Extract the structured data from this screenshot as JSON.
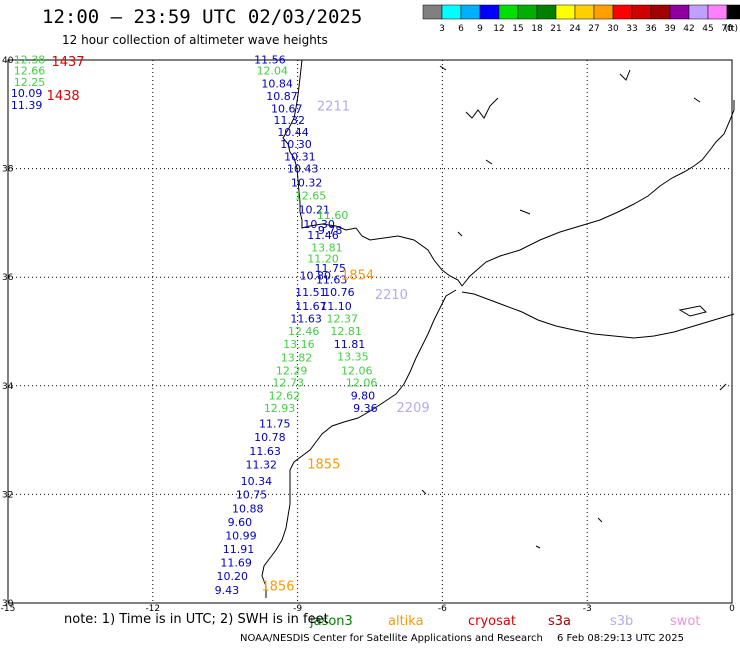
{
  "header": {
    "title": "12:00 – 23:59 UTC 02/03/2025",
    "subtitle": "12 hour collection of altimeter wave heights"
  },
  "scale": {
    "unit_label": "(ft)",
    "ticks": [
      "3",
      "6",
      "9",
      "12",
      "15",
      "18",
      "21",
      "24",
      "27",
      "30",
      "33",
      "36",
      "39",
      "42",
      "45",
      "70"
    ],
    "colors": [
      "#808080",
      "#00ffff",
      "#00b0ff",
      "#0000ff",
      "#00e000",
      "#00b000",
      "#008000",
      "#ffff00",
      "#ffd000",
      "#ffa000",
      "#ff0000",
      "#d00000",
      "#a00000",
      "#9000a0",
      "#c0a0ff",
      "#ff80ff",
      "#000000"
    ]
  },
  "axes": {
    "lon_labels": [
      "-15",
      "-12",
      "-9",
      "-6",
      "-3",
      "0"
    ],
    "lat_labels": [
      "40",
      "38",
      "36",
      "34",
      "32",
      "30"
    ],
    "lon_range": [
      -15,
      0
    ],
    "lat_range": [
      30,
      40
    ]
  },
  "satellites": [
    {
      "name": "jason3",
      "label": "jason3",
      "color": "#008000"
    },
    {
      "name": "altika",
      "label": "altika",
      "color": "#ff9900"
    },
    {
      "name": "cryosat",
      "label": "cryosat",
      "color": "#e00000"
    },
    {
      "name": "s3a",
      "label": "s3a",
      "color": "#a00000"
    },
    {
      "name": "s3b",
      "label": "s3b",
      "color": "#b8a8f0"
    },
    {
      "name": "swot",
      "label": "swot",
      "color": "#f090e0"
    }
  ],
  "footer": {
    "note": "note:  1) Time is in UTC;  2) SWH is in feet",
    "credit": "NOAA/NESDIS Center for Satellite Applications and Research",
    "stamp": "6 Feb 08:29:13 UTC 2025"
  },
  "pass_labels": [
    {
      "text": "1437",
      "color": "#e00000",
      "lon": -14.1,
      "lat": 39.89
    },
    {
      "text": "1438",
      "color": "#e00000",
      "lon": -14.2,
      "lat": 39.26
    },
    {
      "text": "2211",
      "color": "#b8a8f0",
      "lon": -8.6,
      "lat": 39.07
    },
    {
      "text": "1854",
      "color": "#ff9900",
      "lon": -8.1,
      "lat": 35.96
    },
    {
      "text": "2210",
      "color": "#b8a8f0",
      "lon": -7.4,
      "lat": 35.6
    },
    {
      "text": "2209",
      "color": "#b8a8f0",
      "lon": -6.95,
      "lat": 33.52
    },
    {
      "text": "1855",
      "color": "#ff9900",
      "lon": -8.8,
      "lat": 32.48
    },
    {
      "text": "1856",
      "color": "#ff9900",
      "lon": -9.75,
      "lat": 30.23
    }
  ],
  "observations": [
    {
      "v": "12.38",
      "c": "#40d040",
      "lon": -14.88,
      "lat": 39.94
    },
    {
      "v": "12.66",
      "c": "#40d040",
      "lon": -14.88,
      "lat": 39.73
    },
    {
      "v": "12.25",
      "c": "#40d040",
      "lon": -14.88,
      "lat": 39.52
    },
    {
      "v": "10.09",
      "c": "#0000c0",
      "lon": -14.94,
      "lat": 39.32
    },
    {
      "v": "11.39",
      "c": "#0000c0",
      "lon": -14.94,
      "lat": 39.1
    },
    {
      "v": "11.56",
      "c": "#0000c0",
      "lon": -9.9,
      "lat": 39.94
    },
    {
      "v": "12.04",
      "c": "#40d040",
      "lon": -9.85,
      "lat": 39.73
    },
    {
      "v": "10.84",
      "c": "#0000c0",
      "lon": -9.75,
      "lat": 39.49
    },
    {
      "v": "10.87",
      "c": "#0000c0",
      "lon": -9.65,
      "lat": 39.26
    },
    {
      "v": "10.67",
      "c": "#0000c0",
      "lon": -9.55,
      "lat": 39.03
    },
    {
      "v": "11.32",
      "c": "#0000c0",
      "lon": -9.5,
      "lat": 38.82
    },
    {
      "v": "10.44",
      "c": "#0000c0",
      "lon": -9.42,
      "lat": 38.6
    },
    {
      "v": "10.30",
      "c": "#0000c0",
      "lon": -9.36,
      "lat": 38.38
    },
    {
      "v": "10.31",
      "c": "#0000c0",
      "lon": -9.28,
      "lat": 38.15
    },
    {
      "v": "10.43",
      "c": "#0000c0",
      "lon": -9.22,
      "lat": 37.93
    },
    {
      "v": "10.32",
      "c": "#0000c0",
      "lon": -9.14,
      "lat": 37.67
    },
    {
      "v": "12.65",
      "c": "#40d040",
      "lon": -9.06,
      "lat": 37.43
    },
    {
      "v": "10.21",
      "c": "#0000c0",
      "lon": -8.98,
      "lat": 37.17
    },
    {
      "v": "11.60",
      "c": "#40d040",
      "lon": -8.6,
      "lat": 37.07
    },
    {
      "v": "10.30",
      "c": "#0000c0",
      "lon": -8.88,
      "lat": 36.91
    },
    {
      "v": "9.78",
      "c": "#0000c0",
      "lon": -8.58,
      "lat": 36.8
    },
    {
      "v": "11.46",
      "c": "#0000c0",
      "lon": -8.8,
      "lat": 36.7
    },
    {
      "v": "13.81",
      "c": "#40d040",
      "lon": -8.72,
      "lat": 36.47
    },
    {
      "v": "11.20",
      "c": "#40d040",
      "lon": -8.8,
      "lat": 36.27
    },
    {
      "v": "11.75",
      "c": "#0000c0",
      "lon": -8.65,
      "lat": 36.1
    },
    {
      "v": "10.80",
      "c": "#0000c0",
      "lon": -8.96,
      "lat": 35.96
    },
    {
      "v": "11.63",
      "c": "#0000c0",
      "lon": -8.62,
      "lat": 35.88
    },
    {
      "v": "11.51",
      "c": "#0000c0",
      "lon": -9.05,
      "lat": 35.65
    },
    {
      "v": "10.76",
      "c": "#0000c0",
      "lon": -8.47,
      "lat": 35.65
    },
    {
      "v": "11.67",
      "c": "#0000c0",
      "lon": -9.05,
      "lat": 35.4
    },
    {
      "v": "11.10",
      "c": "#0000c0",
      "lon": -8.53,
      "lat": 35.4
    },
    {
      "v": "11.63",
      "c": "#0000c0",
      "lon": -9.15,
      "lat": 35.17
    },
    {
      "v": "12.37",
      "c": "#40d040",
      "lon": -8.4,
      "lat": 35.17
    },
    {
      "v": "12.81",
      "c": "#40d040",
      "lon": -8.32,
      "lat": 34.94
    },
    {
      "v": "12.46",
      "c": "#40d040",
      "lon": -9.2,
      "lat": 34.94
    },
    {
      "v": "13.16",
      "c": "#40d040",
      "lon": -9.3,
      "lat": 34.7
    },
    {
      "v": "11.81",
      "c": "#0000c0",
      "lon": -8.25,
      "lat": 34.7
    },
    {
      "v": "13.35",
      "c": "#40d040",
      "lon": -8.18,
      "lat": 34.47
    },
    {
      "v": "13.82",
      "c": "#40d040",
      "lon": -9.35,
      "lat": 34.45
    },
    {
      "v": "12.06",
      "c": "#40d040",
      "lon": -8.1,
      "lat": 34.21
    },
    {
      "v": "12.29",
      "c": "#40d040",
      "lon": -9.45,
      "lat": 34.21
    },
    {
      "v": "12.06",
      "c": "#40d040",
      "lon": -8.0,
      "lat": 33.99
    },
    {
      "v": "12.73",
      "c": "#40d040",
      "lon": -9.52,
      "lat": 33.99
    },
    {
      "v": "9.80",
      "c": "#0000c0",
      "lon": -7.9,
      "lat": 33.75
    },
    {
      "v": "12.62",
      "c": "#40d040",
      "lon": -9.6,
      "lat": 33.75
    },
    {
      "v": "9.36",
      "c": "#0000c0",
      "lon": -7.85,
      "lat": 33.52
    },
    {
      "v": "12.93",
      "c": "#40d040",
      "lon": -9.7,
      "lat": 33.52
    },
    {
      "v": "11.75",
      "c": "#0000c0",
      "lon": -9.8,
      "lat": 33.23
    },
    {
      "v": "10.78",
      "c": "#0000c0",
      "lon": -9.9,
      "lat": 32.98
    },
    {
      "v": "11.63",
      "c": "#0000c0",
      "lon": -10.0,
      "lat": 32.73
    },
    {
      "v": "11.32",
      "c": "#0000c0",
      "lon": -10.08,
      "lat": 32.48
    },
    {
      "v": "10.34",
      "c": "#0000c0",
      "lon": -10.18,
      "lat": 32.17
    },
    {
      "v": "10.75",
      "c": "#0000c0",
      "lon": -10.28,
      "lat": 31.92
    },
    {
      "v": "10.88",
      "c": "#0000c0",
      "lon": -10.36,
      "lat": 31.67
    },
    {
      "v": "9.60",
      "c": "#0000c0",
      "lon": -10.45,
      "lat": 31.42
    },
    {
      "v": "10.99",
      "c": "#0000c0",
      "lon": -10.5,
      "lat": 31.17
    },
    {
      "v": "11.91",
      "c": "#0000c0",
      "lon": -10.55,
      "lat": 30.92
    },
    {
      "v": "11.69",
      "c": "#0000c0",
      "lon": -10.6,
      "lat": 30.67
    },
    {
      "v": "10.20",
      "c": "#0000c0",
      "lon": -10.68,
      "lat": 30.42
    },
    {
      "v": "9.43",
      "c": "#0000c0",
      "lon": -10.72,
      "lat": 30.17
    }
  ]
}
